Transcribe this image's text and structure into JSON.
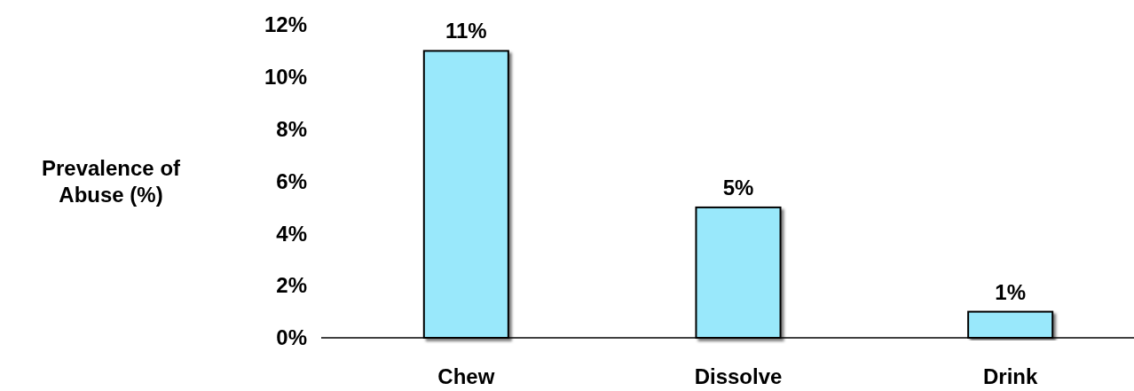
{
  "chart_data": {
    "type": "bar",
    "ylabel": "Prevalence of Abuse (%)",
    "categories": [
      "Chew",
      "Dissolve",
      "Drink"
    ],
    "values": [
      11,
      5,
      1
    ],
    "color": "#99e8fb",
    "value_labels": [
      "11%",
      "5%",
      "1%"
    ],
    "ylim": [
      0,
      12
    ],
    "yticks": [
      {
        "value": 0,
        "label": "0%"
      },
      {
        "value": 2,
        "label": "2%"
      },
      {
        "value": 4,
        "label": "4%"
      },
      {
        "value": 6,
        "label": "6%"
      },
      {
        "value": 8,
        "label": "8%"
      },
      {
        "value": 10,
        "label": "10%"
      },
      {
        "value": 12,
        "label": "12%"
      }
    ],
    "grid": false
  }
}
